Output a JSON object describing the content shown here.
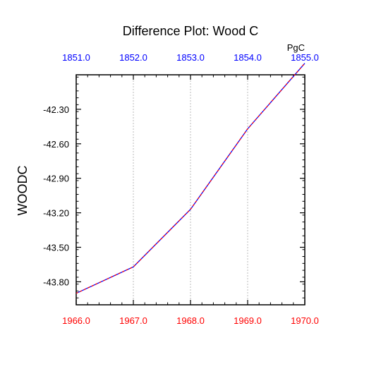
{
  "chart_data": {
    "type": "line",
    "title": "Difference Plot: Wood C",
    "ylabel": "WOODC",
    "units": "PgC",
    "x_bottom": [
      1966.0,
      1967.0,
      1968.0,
      1969.0,
      1970.0
    ],
    "x_top": [
      1851.0,
      1852.0,
      1853.0,
      1854.0,
      1855.0
    ],
    "x_bottom_tick_labels": [
      "1966.0",
      "1967.0",
      "1968.0",
      "1969.0",
      "1970.0"
    ],
    "x_top_tick_labels": [
      "1851.0",
      "1852.0",
      "1853.0",
      "1854.0",
      "1855.0"
    ],
    "xlim": [
      1966.0,
      1970.0
    ],
    "ylim": [
      -44.0,
      -42.0
    ],
    "y_ticks": [
      -42.3,
      -42.6,
      -42.9,
      -43.2,
      -43.5,
      -43.8
    ],
    "y_tick_labels": [
      "-42.30",
      "-42.60",
      "-42.90",
      "-43.20",
      "-43.50",
      "-43.80"
    ],
    "series": [
      {
        "values": [
          -43.9,
          -43.67,
          -43.17,
          -42.47,
          -41.9
        ],
        "color": "#0000ff",
        "overlay_color": "#ff0000",
        "style": "dashed"
      }
    ],
    "grid": "vertical-dashed",
    "colors": {
      "bottom_axis_labels": "#ff0000",
      "top_axis_labels": "#0000ff",
      "grid": "#aaaaaa"
    }
  }
}
